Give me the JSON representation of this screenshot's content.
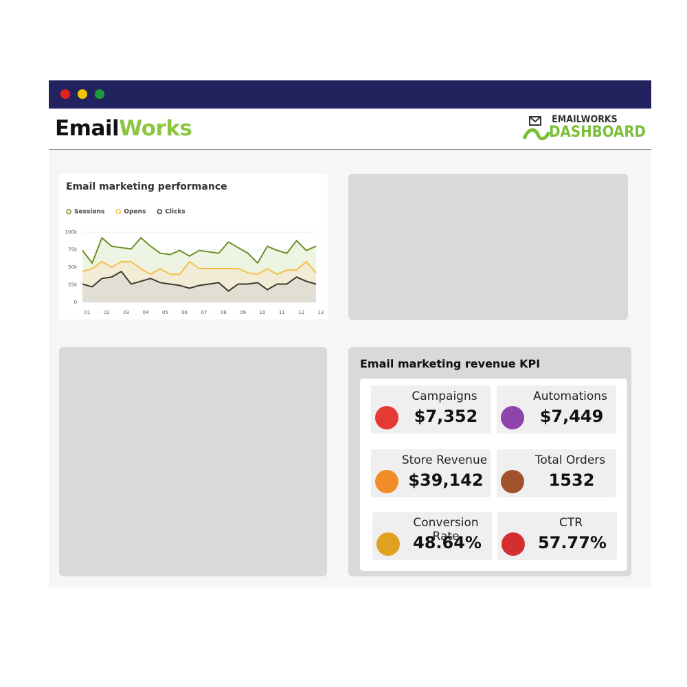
{
  "header": {
    "brand_a": "Email",
    "brand_b": "Works",
    "logo_top": "EMAILWORKS",
    "logo_bottom": "DASHBOARD"
  },
  "chart_data": {
    "type": "line",
    "title": "Email marketing performance",
    "categories": [
      "01",
      null,
      "02",
      null,
      "03",
      null,
      "04",
      null,
      "05",
      null,
      "06",
      null,
      "07",
      null,
      "08",
      null,
      "09",
      null,
      "10",
      null,
      "11",
      null,
      "12",
      null,
      "13"
    ],
    "series": [
      {
        "name": "Sessions",
        "color": "#6b8e23",
        "fill": "#eaf1dc",
        "values": [
          74,
          56,
          92,
          80,
          78,
          76,
          92,
          80,
          70,
          68,
          74,
          66,
          74,
          72,
          70,
          86,
          78,
          70,
          56,
          80,
          74,
          70,
          88,
          74,
          80
        ]
      },
      {
        "name": "Opens",
        "color": "#f5c04a",
        "fill": "#f3ead2",
        "values": [
          44,
          48,
          58,
          50,
          58,
          58,
          48,
          40,
          48,
          40,
          40,
          58,
          48,
          48,
          48,
          48,
          48,
          42,
          40,
          48,
          40,
          46,
          46,
          58,
          42
        ]
      },
      {
        "name": "Clicks",
        "color": "#3b3b2b",
        "fill": "#dcdcd2",
        "values": [
          26,
          22,
          34,
          36,
          44,
          26,
          30,
          34,
          28,
          26,
          24,
          20,
          24,
          26,
          28,
          16,
          26,
          26,
          28,
          18,
          26,
          26,
          36,
          30,
          26
        ]
      }
    ],
    "ylim": [
      0,
      100
    ],
    "yticks": [
      0,
      {
        "value": 25,
        "label": "25k"
      },
      {
        "value": 50,
        "label": "50k"
      },
      {
        "value": 75,
        "label": "75k"
      },
      {
        "value": 100,
        "label": "100k"
      }
    ],
    "grid": true,
    "legend": "top"
  },
  "kpi": {
    "title": "Email marketing revenue KPI",
    "items": [
      {
        "label": "Campaigns",
        "value": "$7,352"
      },
      {
        "label": "Automations",
        "value": "$7,449"
      },
      {
        "label": "Store Revenue",
        "value": "$39,142"
      },
      {
        "label": "Total Orders",
        "value": "1532"
      },
      {
        "label": "Conversion Rate",
        "value": "48.64%"
      },
      {
        "label": "CTR",
        "value": "57.77%"
      }
    ]
  }
}
